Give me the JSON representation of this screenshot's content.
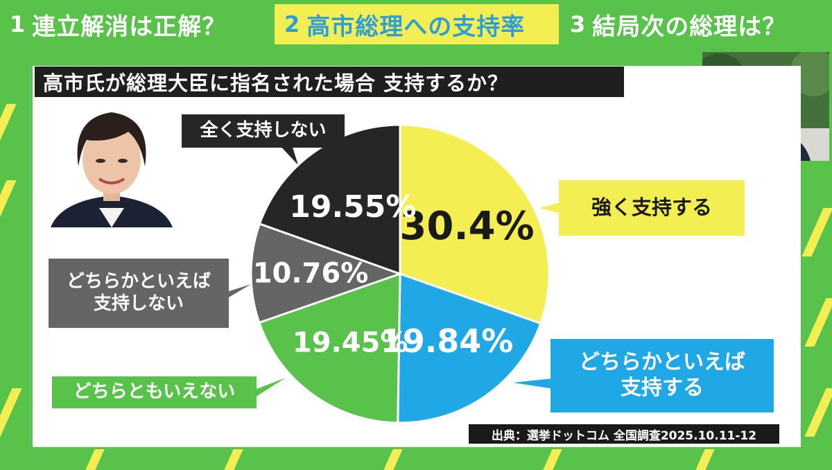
{
  "tabs": [
    {
      "number": "1",
      "label": "連立解消は正解？"
    },
    {
      "number": "2",
      "label": "高市総理への支持率"
    },
    {
      "number": "3",
      "label": "結局次の総理は？"
    }
  ],
  "colors": {
    "background_green": "#58c24b",
    "accent_yellow": "#f3ee52",
    "accent_blue": "#1fa7e6",
    "black": "#262626",
    "gray": "#656565"
  },
  "chart_data": {
    "type": "pie",
    "title": "高市氏が総理大臣に指名された場合 支持するか？",
    "slices": [
      {
        "label": "強く支持する",
        "value": 30.4,
        "display": "30.4%",
        "color": "#f3ee52"
      },
      {
        "label": "どちらかといえば\n支持する",
        "value": 19.84,
        "display": "19.84%",
        "color": "#1fa7e6"
      },
      {
        "label": "どちらともいえない",
        "value": 19.45,
        "display": "19.45%",
        "color": "#58c24b"
      },
      {
        "label": "どちらかといえば\n支持しない",
        "value": 10.76,
        "display": "10.76%",
        "color": "#656565"
      },
      {
        "label": "全く支持しない",
        "value": 19.55,
        "display": "19.55%",
        "color": "#262626"
      }
    ],
    "source": "出典：選挙ドットコム 全国調査2025.10.11-12"
  }
}
